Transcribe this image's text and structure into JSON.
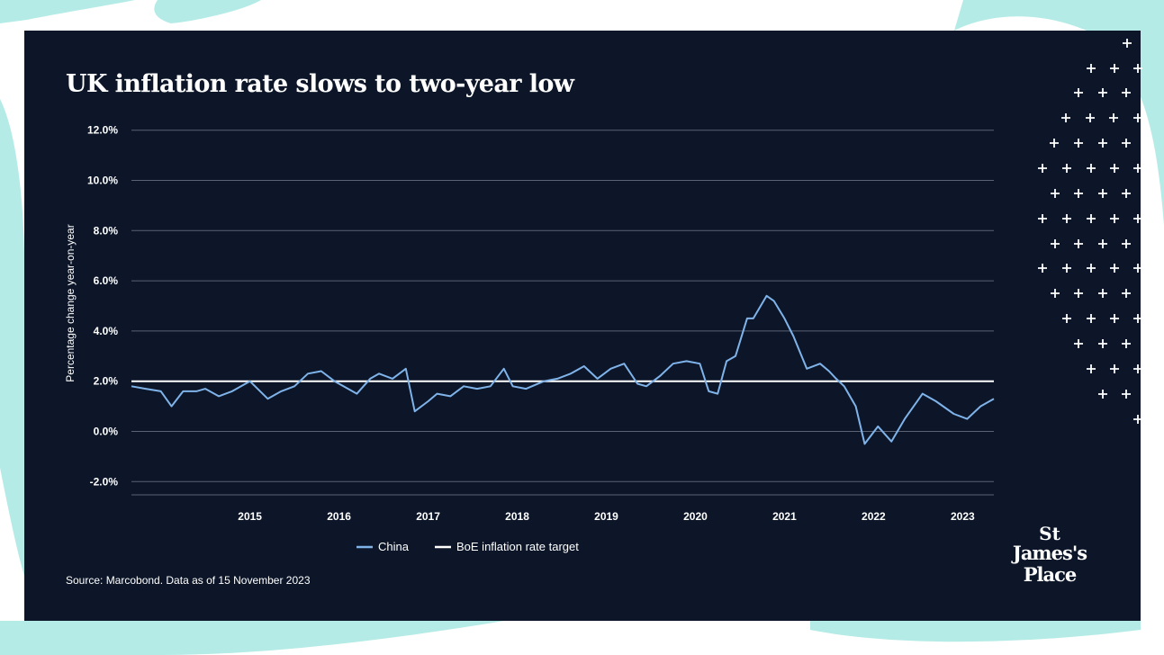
{
  "title": "UK inflation rate slows to two-year low",
  "source": "Source: Marcobond. Data as of 15 November 2023",
  "brand": {
    "line1": "St",
    "line2": "James's",
    "line3": "Place"
  },
  "colors": {
    "background": "#0c1628",
    "backdrop": "#b5ebe6",
    "china": "#7fb3ea",
    "uk": "#d186ec",
    "euro_area": "#f2a057",
    "us": "#2fcfb5",
    "target": "#ffffff"
  },
  "chart_data": {
    "type": "line",
    "title": "UK inflation rate slows to two-year low",
    "ylabel": "Percentage change year-on-year",
    "xlabel": "",
    "ylim": [
      -2.5,
      12.0
    ],
    "yticks": [
      "12.0%",
      "10.0%",
      "8.0%",
      "6.0%",
      "4.0%",
      "2.0%",
      "0.0%",
      "-2.0%"
    ],
    "ytick_values": [
      12,
      10,
      8,
      6,
      4,
      2,
      0,
      -2
    ],
    "xticks": [
      "2015",
      "2016",
      "2017",
      "2018",
      "2019",
      "2020",
      "2021",
      "2022",
      "2023"
    ],
    "x_start": "2014-03",
    "x_end": "2023-05",
    "grid": true,
    "legend_position": "bottom",
    "reference_line": {
      "name": "BoE inflation rate target",
      "value": 2.0
    },
    "series": [
      {
        "name": "China",
        "color": "#7fb3ea",
        "points": [
          [
            2014.17,
            1.8
          ],
          [
            2014.33,
            1.7
          ],
          [
            2014.5,
            1.6
          ],
          [
            2014.62,
            1.0
          ],
          [
            2014.75,
            1.6
          ],
          [
            2014.9,
            1.6
          ],
          [
            2015.0,
            1.7
          ],
          [
            2015.15,
            1.4
          ],
          [
            2015.3,
            1.6
          ],
          [
            2015.5,
            2.0
          ],
          [
            2015.7,
            1.3
          ],
          [
            2015.85,
            1.6
          ],
          [
            2016.0,
            1.8
          ],
          [
            2016.15,
            2.3
          ],
          [
            2016.3,
            2.4
          ],
          [
            2016.45,
            2.0
          ],
          [
            2016.55,
            1.8
          ],
          [
            2016.7,
            1.5
          ],
          [
            2016.85,
            2.1
          ],
          [
            2016.95,
            2.3
          ],
          [
            2017.1,
            2.1
          ],
          [
            2017.25,
            2.5
          ],
          [
            2017.35,
            0.8
          ],
          [
            2017.5,
            1.2
          ],
          [
            2017.6,
            1.5
          ],
          [
            2017.75,
            1.4
          ],
          [
            2017.9,
            1.8
          ],
          [
            2018.05,
            1.7
          ],
          [
            2018.2,
            1.8
          ],
          [
            2018.35,
            2.5
          ],
          [
            2018.45,
            1.8
          ],
          [
            2018.6,
            1.7
          ],
          [
            2018.8,
            2.0
          ],
          [
            2018.95,
            2.1
          ],
          [
            2019.1,
            2.3
          ],
          [
            2019.25,
            2.6
          ],
          [
            2019.4,
            2.1
          ],
          [
            2019.55,
            2.5
          ],
          [
            2019.7,
            2.7
          ],
          [
            2019.85,
            1.9
          ],
          [
            2019.95,
            1.8
          ],
          [
            2020.1,
            2.2
          ],
          [
            2020.25,
            2.7
          ],
          [
            2020.4,
            2.8
          ],
          [
            2020.55,
            2.7
          ],
          [
            2020.65,
            1.6
          ],
          [
            2020.75,
            1.5
          ],
          [
            2020.85,
            2.8
          ],
          [
            2020.95,
            3.0
          ],
          [
            2021.08,
            4.5
          ],
          [
            2021.15,
            4.5
          ],
          [
            2021.3,
            5.4
          ],
          [
            2021.38,
            5.2
          ],
          [
            2021.5,
            4.5
          ],
          [
            2021.6,
            3.8
          ],
          [
            2021.75,
            2.5
          ],
          [
            2021.9,
            2.7
          ],
          [
            2022.0,
            2.4
          ],
          [
            2022.08,
            2.1
          ],
          [
            2022.17,
            1.8
          ],
          [
            2022.3,
            1.0
          ],
          [
            2022.4,
            -0.5
          ],
          [
            2022.55,
            0.2
          ],
          [
            2022.7,
            -0.4
          ],
          [
            2022.85,
            0.5
          ],
          [
            2022.95,
            1.0
          ],
          [
            2023.05,
            1.5
          ],
          [
            2023.2,
            1.2
          ],
          [
            2023.4,
            0.7
          ],
          [
            2023.55,
            0.5
          ],
          [
            2023.7,
            1.0
          ],
          [
            2023.85,
            1.3
          ]
        ]
      }
    ]
  }
}
